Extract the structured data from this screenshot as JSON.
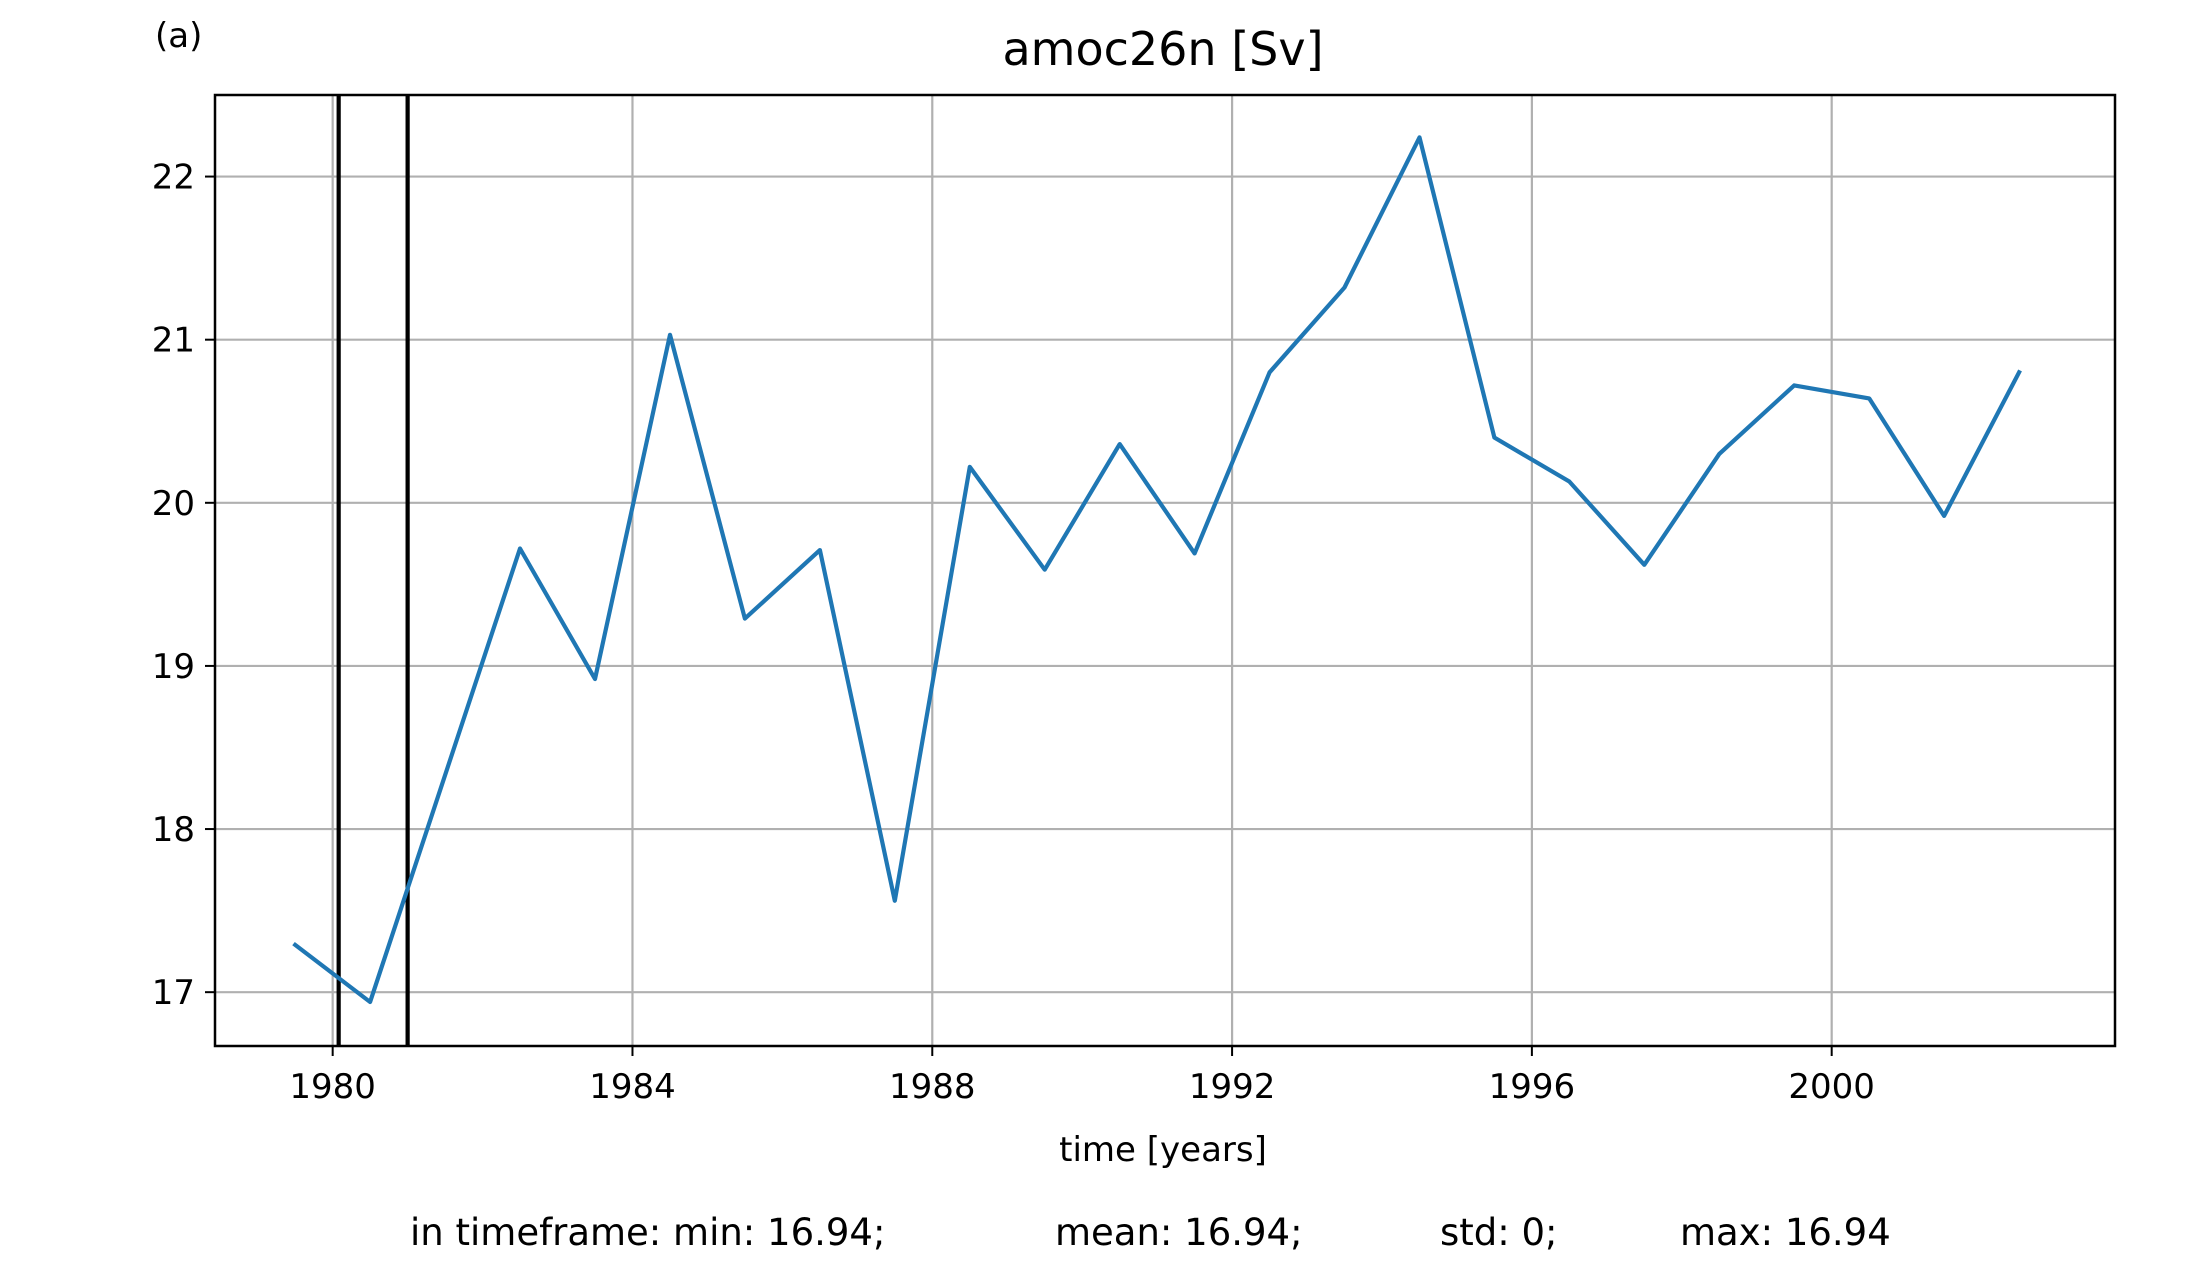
{
  "panel_label": "(a)",
  "stats": {
    "min": "in timeframe: min: 16.94;",
    "mean": "mean: 16.94;",
    "std": "std: 0;",
    "max": "max: 16.94"
  },
  "colors": {
    "series": "#1f77b4",
    "grid": "#b0b0b0",
    "markers": "#000000"
  },
  "chart_data": {
    "type": "line",
    "title": "amoc26n [Sv]",
    "xlabel": "time [years]",
    "ylabel": "",
    "xlim": [
      1978.43,
      2003.78
    ],
    "ylim": [
      16.67,
      22.5
    ],
    "grid": true,
    "x_ticks": [
      1980,
      1984,
      1988,
      1992,
      1996,
      2000
    ],
    "x_tick_labels": [
      "1980",
      "1984",
      "1988",
      "1992",
      "1996",
      "2000"
    ],
    "y_ticks": [
      17,
      18,
      19,
      20,
      21,
      22
    ],
    "y_tick_labels": [
      "17",
      "18",
      "19",
      "20",
      "21",
      "22"
    ],
    "vertical_lines": [
      1980.08,
      1981.0
    ],
    "series": [
      {
        "x": [
          1979.5,
          1980.5,
          1982.5,
          1983.5,
          1984.5,
          1985.5,
          1986.5,
          1987.5,
          1988.5,
          1989.5,
          1990.5,
          1991.5,
          1992.5,
          1993.5,
          1994.5,
          1995.5,
          1996.5,
          1997.5,
          1998.5,
          1999.5,
          2000.5,
          2001.5,
          2002.5
        ],
        "values": [
          17.29,
          16.94,
          19.72,
          18.92,
          21.03,
          19.29,
          19.71,
          17.56,
          20.22,
          19.59,
          20.36,
          19.69,
          20.8,
          21.32,
          22.24,
          20.4,
          20.13,
          19.62,
          20.3,
          20.72,
          20.64,
          19.92,
          20.8
        ]
      }
    ]
  }
}
